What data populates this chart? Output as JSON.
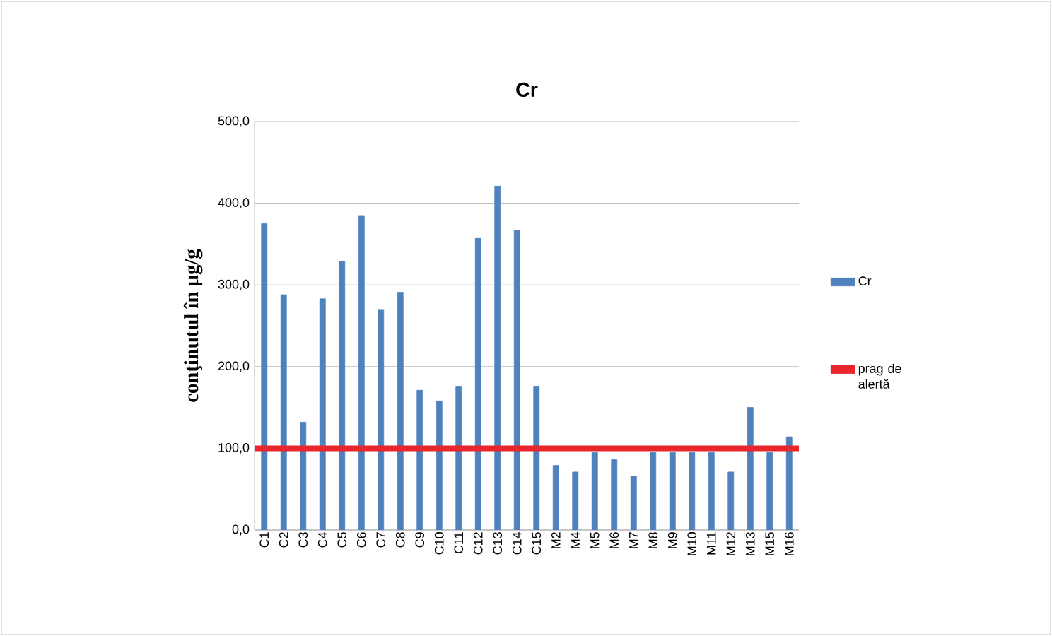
{
  "chart_data": {
    "type": "bar",
    "title": "Cr",
    "ylabel": "conţinutul în µg/g",
    "categories": [
      "C1",
      "C2",
      "C3",
      "C4",
      "C5",
      "C6",
      "C7",
      "C8",
      "C9",
      "C10",
      "C11",
      "C12",
      "C13",
      "C14",
      "C15",
      "M2",
      "M4",
      "M5",
      "M6",
      "M7",
      "M8",
      "M9",
      "M10",
      "M11",
      "M12",
      "M13",
      "M15",
      "M16"
    ],
    "series": [
      {
        "name": "Cr",
        "color": "#4f81bd",
        "values": [
          375,
          288,
          132,
          283,
          329,
          385,
          270,
          291,
          171,
          158,
          176,
          357,
          421,
          367,
          176,
          79,
          71,
          95,
          86,
          66,
          95,
          95,
          95,
          95,
          71,
          150,
          95,
          114
        ]
      }
    ],
    "ylim": [
      0,
      500
    ],
    "yticks": [
      {
        "value": 0,
        "label": "0,0"
      },
      {
        "value": 100,
        "label": "100,0"
      },
      {
        "value": 200,
        "label": "200,0"
      },
      {
        "value": 300,
        "label": "300,0"
      },
      {
        "value": 400,
        "label": "400,0"
      },
      {
        "value": 500,
        "label": "500,0"
      }
    ],
    "ref_lines": [
      {
        "axis": "y",
        "value": 100,
        "label": "prag de alertă",
        "color": "#e8262b"
      }
    ],
    "grid": "y",
    "legend": "right"
  }
}
